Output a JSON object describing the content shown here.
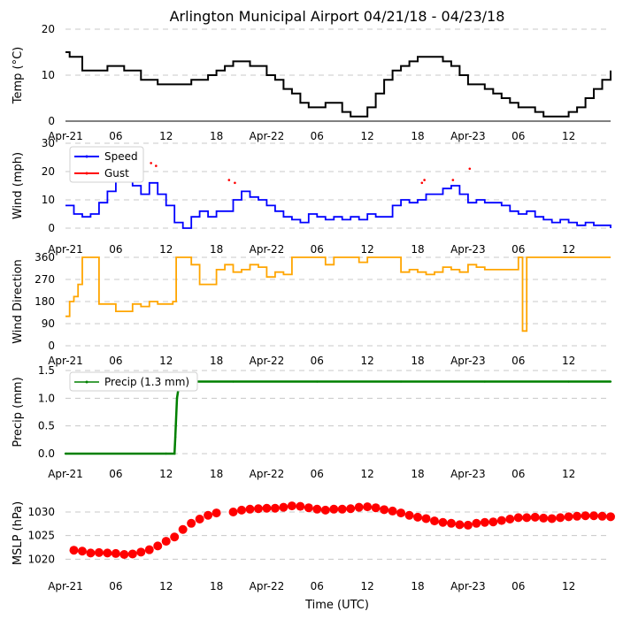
{
  "title": "Arlington Municipal Airport 04/21/18 - 04/23/18",
  "xaxis_label": "Time (UTC)",
  "x_tick_labels": [
    "Apr-21",
    "06",
    "12",
    "18",
    "Apr-22",
    "06",
    "12",
    "18",
    "Apr-23",
    "06",
    "12"
  ],
  "x_range_hours": [
    0,
    65
  ],
  "colors": {
    "temp": "#000000",
    "speed": "#0000ff",
    "gust": "#ff0000",
    "direction": "#ffa500",
    "precip": "#008000",
    "pressure": "#ff0000"
  },
  "chart_data": [
    {
      "type": "line",
      "name": "temperature",
      "ylabel": "Temp ($^\\circ$C)",
      "ylabel_display": "Temp (°C)",
      "ylim": [
        0,
        20
      ],
      "yticks": [
        "0",
        "10",
        "20"
      ],
      "x_hours": [
        0,
        0.5,
        2,
        4,
        5,
        6,
        7,
        8,
        9,
        10,
        11,
        12,
        13,
        14,
        15,
        16,
        17,
        18,
        19,
        20,
        21,
        22,
        23,
        24,
        25,
        26,
        27,
        28,
        29,
        30,
        31,
        32,
        33,
        34,
        35,
        36,
        37,
        38,
        39,
        40,
        41,
        42,
        43,
        44,
        45,
        46,
        47,
        48,
        49,
        50,
        51,
        52,
        53,
        54,
        55,
        56,
        57,
        58,
        59,
        60,
        61,
        62,
        63,
        64,
        65
      ],
      "values": [
        15,
        14,
        11,
        11,
        12,
        12,
        11,
        11,
        9,
        9,
        8,
        8,
        8,
        8,
        9,
        9,
        10,
        11,
        12,
        13,
        13,
        12,
        12,
        10,
        9,
        7,
        6,
        4,
        3,
        3,
        4,
        4,
        2,
        1,
        1,
        3,
        6,
        9,
        11,
        12,
        13,
        14,
        14,
        14,
        13,
        12,
        10,
        8,
        8,
        7,
        6,
        5,
        4,
        3,
        3,
        2,
        1,
        1,
        1,
        2,
        3,
        5,
        7,
        9,
        11
      ]
    },
    {
      "type": "line",
      "name": "wind",
      "ylabel": "Wind (mph)",
      "ylim": [
        0,
        30
      ],
      "yticks": [
        "0",
        "10",
        "20",
        "30"
      ],
      "series": [
        {
          "name": "Speed",
          "x_hours": [
            0,
            1,
            2,
            3,
            4,
            5,
            6,
            7,
            8,
            9,
            10,
            11,
            12,
            13,
            14,
            15,
            16,
            17,
            18,
            19,
            20,
            21,
            22,
            23,
            24,
            25,
            26,
            27,
            28,
            29,
            30,
            31,
            32,
            33,
            34,
            35,
            36,
            37,
            38,
            39,
            40,
            41,
            42,
            43,
            44,
            45,
            46,
            47,
            48,
            49,
            50,
            51,
            52,
            53,
            54,
            55,
            56,
            57,
            58,
            59,
            60,
            61,
            62,
            63,
            64,
            65
          ],
          "values": [
            8,
            5,
            4,
            5,
            9,
            13,
            17,
            18,
            15,
            12,
            16,
            12,
            8,
            2,
            0,
            4,
            6,
            4,
            6,
            6,
            10,
            13,
            11,
            10,
            8,
            6,
            4,
            3,
            2,
            5,
            4,
            3,
            4,
            3,
            4,
            3,
            5,
            4,
            4,
            8,
            10,
            9,
            10,
            12,
            12,
            14,
            15,
            12,
            9,
            10,
            9,
            9,
            8,
            6,
            5,
            6,
            4,
            3,
            2,
            3,
            2,
            1,
            2,
            1,
            1,
            0
          ]
        },
        {
          "name": "Gust",
          "x_hours": [
            10.2,
            10.8,
            19.5,
            20.2,
            42.5,
            42.8,
            46.2,
            48.2
          ],
          "values": [
            23,
            22,
            17,
            16,
            16,
            17,
            17,
            21
          ]
        }
      ],
      "legend": [
        "Speed",
        "Gust"
      ]
    },
    {
      "type": "line",
      "name": "wind_direction",
      "ylabel": "Wind Direction",
      "ylim": [
        0,
        360
      ],
      "yticks": [
        "0",
        "90",
        "180",
        "270",
        "360"
      ],
      "x_hours": [
        0,
        0.5,
        1,
        1.5,
        2,
        2.5,
        3,
        3.5,
        4,
        5,
        6,
        7,
        8,
        9,
        10,
        11,
        12,
        12.8,
        13.2,
        14,
        15,
        16,
        17,
        18,
        19,
        20,
        21,
        22,
        23,
        24,
        25,
        26,
        27,
        28,
        28.5,
        29,
        30,
        31,
        32,
        33,
        34,
        35,
        36,
        37,
        38,
        39,
        40,
        41,
        42,
        43,
        44,
        45,
        46,
        47,
        48,
        49,
        50,
        51,
        52,
        53,
        54,
        54.5,
        55,
        56,
        57,
        58,
        59,
        60,
        61,
        62,
        63,
        64,
        65
      ],
      "values": [
        120,
        180,
        200,
        250,
        360,
        360,
        360,
        360,
        170,
        170,
        140,
        140,
        170,
        160,
        180,
        170,
        170,
        180,
        360,
        360,
        330,
        250,
        250,
        310,
        330,
        300,
        310,
        330,
        320,
        280,
        300,
        290,
        360,
        360,
        360,
        360,
        360,
        330,
        360,
        360,
        360,
        340,
        360,
        360,
        360,
        360,
        300,
        310,
        300,
        290,
        300,
        320,
        310,
        300,
        330,
        320,
        310,
        310,
        310,
        310,
        360,
        60,
        360,
        360,
        360,
        360,
        360,
        360,
        360,
        360,
        360,
        360,
        360
      ]
    },
    {
      "type": "line",
      "name": "precipitation",
      "ylabel": "Precip (mm)",
      "ylim": [
        0,
        1.5
      ],
      "yticks": [
        "0.0",
        "0.5",
        "1.0",
        "1.5"
      ],
      "x_hours": [
        0,
        12,
        13,
        13.1,
        13.3,
        13.6,
        20,
        30,
        40,
        50,
        60,
        65
      ],
      "values": [
        0,
        0,
        0,
        0.3,
        1.0,
        1.3,
        1.3,
        1.3,
        1.3,
        1.3,
        1.3,
        1.3
      ],
      "legend": [
        "Precip (1.3 mm)"
      ]
    },
    {
      "type": "scatter",
      "name": "pressure",
      "ylabel": "MSLP (hPa)",
      "ylim": [
        1018,
        1033
      ],
      "yticks": [
        "1020",
        "1025",
        "1030"
      ],
      "x_hours": [
        1,
        2,
        3,
        4,
        5,
        6,
        7,
        8,
        9,
        10,
        11,
        12,
        13,
        14,
        15,
        16,
        17,
        18,
        20,
        21,
        22,
        23,
        24,
        25,
        26,
        27,
        28,
        29,
        30,
        31,
        32,
        33,
        34,
        35,
        36,
        37,
        38,
        39,
        40,
        41,
        42,
        43,
        44,
        45,
        46,
        47,
        48,
        49,
        50,
        51,
        52,
        53,
        54,
        55,
        56,
        57,
        58,
        59,
        60,
        61,
        62,
        63,
        64,
        65
      ],
      "values": [
        1021.9,
        1021.7,
        1021.3,
        1021.4,
        1021.3,
        1021.2,
        1021.0,
        1021.1,
        1021.5,
        1022.0,
        1022.8,
        1023.8,
        1024.7,
        1026.3,
        1027.6,
        1028.5,
        1029.3,
        1029.8,
        1030.0,
        1030.4,
        1030.6,
        1030.7,
        1030.8,
        1030.8,
        1031.0,
        1031.3,
        1031.2,
        1030.9,
        1030.6,
        1030.4,
        1030.6,
        1030.6,
        1030.7,
        1031.0,
        1031.1,
        1030.9,
        1030.5,
        1030.2,
        1029.8,
        1029.3,
        1028.9,
        1028.6,
        1028.1,
        1027.8,
        1027.6,
        1027.3,
        1027.2,
        1027.6,
        1027.8,
        1027.9,
        1028.2,
        1028.5,
        1028.8,
        1028.8,
        1028.9,
        1028.7,
        1028.6,
        1028.8,
        1029.0,
        1029.1,
        1029.2,
        1029.2,
        1029.1,
        1029.0
      ]
    }
  ]
}
